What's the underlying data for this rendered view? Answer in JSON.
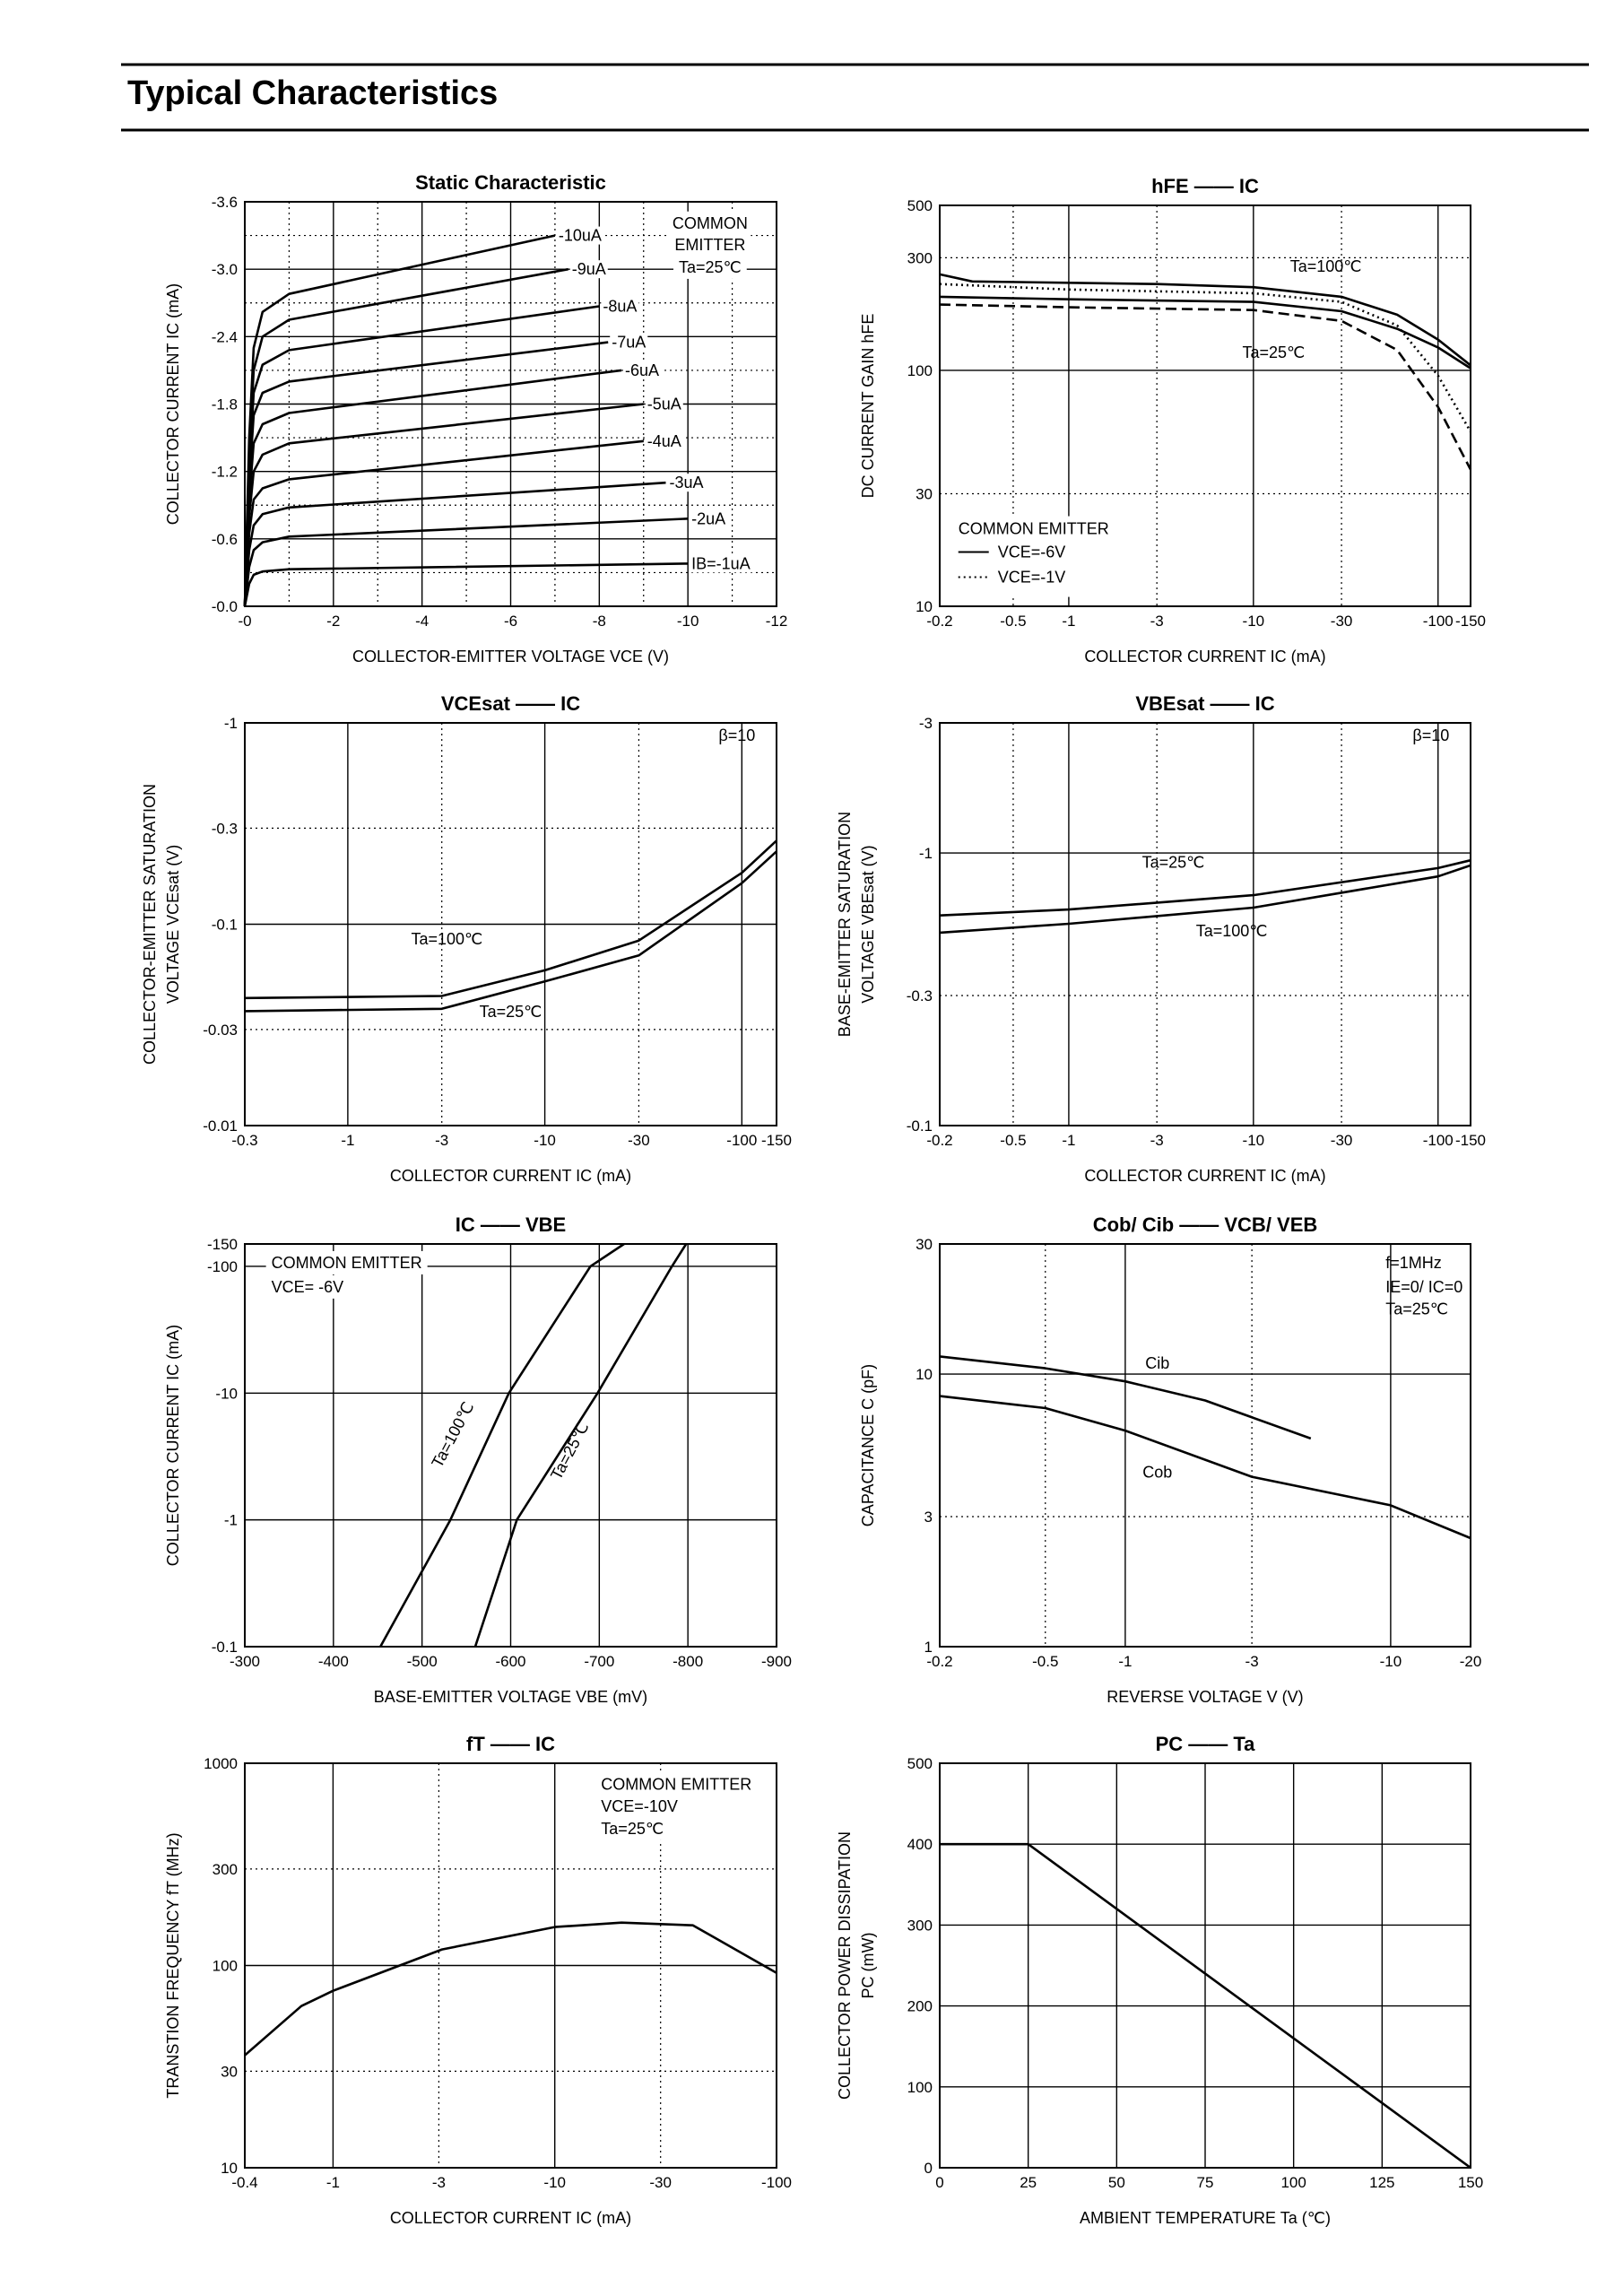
{
  "header": {
    "title": "Typical Characteristics"
  },
  "chart_data": [
    {
      "type": "line",
      "title": "Static Characteristic",
      "x_label": "COLLECTOR-EMITTER VOLTAGE   VCE   (V)",
      "y_label": [
        "COLLECTOR CURRENT   IC   (mA)"
      ],
      "xscale": "linear",
      "yscale": "linear",
      "xlim": [
        0,
        -12
      ],
      "ylim": [
        0,
        -3.6
      ],
      "xticks": [
        {
          "value": 0,
          "label": "-0"
        },
        -2,
        -4,
        -6,
        -8,
        -10,
        -12
      ],
      "yticks": [
        {
          "value": 0,
          "label": "-0.0"
        },
        -0.6,
        -1.2,
        -1.8,
        -2.4,
        {
          "value": -3,
          "label": "-3.0"
        },
        -3.6
      ],
      "minor_xticks": [
        -1,
        -3,
        -5,
        -7,
        -9,
        -11
      ],
      "minor_yticks": [
        -0.3,
        -0.9,
        -1.5,
        -2.1,
        -2.7,
        -3.3
      ],
      "grid": true,
      "annotations": [
        "COMMON",
        "EMITTER",
        "Ta=25℃"
      ],
      "series": [
        {
          "name": "IB=-1uA",
          "color": "#000000",
          "dash": "solid",
          "x": [
            0,
            -0.1,
            -0.2,
            -0.4,
            -1,
            -10
          ],
          "values": [
            0,
            -0.2,
            -0.28,
            -0.31,
            -0.33,
            -0.38
          ]
        },
        {
          "name": "-2uA",
          "color": "#000000",
          "dash": "solid",
          "x": [
            0,
            -0.1,
            -0.2,
            -0.4,
            -1,
            -10
          ],
          "values": [
            0,
            -0.35,
            -0.5,
            -0.57,
            -0.62,
            -0.78
          ]
        },
        {
          "name": "-3uA",
          "color": "#000000",
          "dash": "solid",
          "x": [
            0,
            -0.1,
            -0.2,
            -0.4,
            -1,
            -9.5
          ],
          "values": [
            0,
            -0.5,
            -0.72,
            -0.82,
            -0.88,
            -1.1
          ]
        },
        {
          "name": "-4uA",
          "color": "#000000",
          "dash": "solid",
          "x": [
            0,
            -0.1,
            -0.2,
            -0.4,
            -1,
            -9
          ],
          "values": [
            0,
            -0.65,
            -0.95,
            -1.05,
            -1.13,
            -1.47
          ]
        },
        {
          "name": "-5uA",
          "color": "#000000",
          "dash": "solid",
          "x": [
            0,
            -0.1,
            -0.2,
            -0.4,
            -1,
            -9
          ],
          "values": [
            0,
            -0.8,
            -1.2,
            -1.35,
            -1.45,
            -1.8
          ]
        },
        {
          "name": "-6uA",
          "color": "#000000",
          "dash": "solid",
          "x": [
            0,
            -0.1,
            -0.2,
            -0.4,
            -1,
            -8.5
          ],
          "values": [
            0,
            -0.95,
            -1.45,
            -1.62,
            -1.72,
            -2.1
          ]
        },
        {
          "name": "-7uA",
          "color": "#000000",
          "dash": "solid",
          "x": [
            0,
            -0.1,
            -0.2,
            -0.4,
            -1,
            -8.2
          ],
          "values": [
            0,
            -1.1,
            -1.7,
            -1.9,
            -2.0,
            -2.35
          ]
        },
        {
          "name": "-8uA",
          "color": "#000000",
          "dash": "solid",
          "x": [
            0,
            -0.1,
            -0.2,
            -0.4,
            -1,
            -8
          ],
          "values": [
            0,
            -1.2,
            -1.9,
            -2.15,
            -2.28,
            -2.67
          ]
        },
        {
          "name": "-9uA",
          "color": "#000000",
          "dash": "solid",
          "x": [
            0,
            -0.1,
            -0.2,
            -0.4,
            -1,
            -7.3
          ],
          "values": [
            0,
            -1.35,
            -2.1,
            -2.4,
            -2.55,
            -3.0
          ]
        },
        {
          "name": "-10uA",
          "color": "#000000",
          "dash": "solid",
          "x": [
            0,
            -0.1,
            -0.2,
            -0.4,
            -1,
            -7
          ],
          "values": [
            0,
            -1.5,
            -2.3,
            -2.62,
            -2.78,
            -3.3
          ]
        }
      ]
    },
    {
      "type": "line",
      "title": "hFE  ——  IC",
      "x_label": "COLLECTOR CURRENT   IC   (mA)",
      "y_label": [
        "DC CURRENT GAIN   hFE"
      ],
      "xscale": "log",
      "yscale": "log",
      "xlim": [
        -0.2,
        -150
      ],
      "ylim": [
        10,
        500
      ],
      "xticks": [
        -0.2,
        -0.5,
        -1,
        -3,
        -10,
        -30,
        -100,
        -150
      ],
      "yticks": [
        10,
        30,
        100,
        300,
        500
      ],
      "grid": true,
      "annotations": [
        "Ta=100℃",
        "Ta=25℃"
      ],
      "legend": {
        "title": "COMMON EMITTER",
        "entries": [
          {
            "label": "VCE=-6V",
            "dash": "solid"
          },
          {
            "label": "VCE=-1V",
            "dash": "dotted"
          }
        ]
      },
      "series": [
        {
          "color": "#000000",
          "dash": "solid",
          "x": [
            -0.2,
            -0.3,
            -1,
            -3,
            -10,
            -30,
            -60,
            -100,
            -150
          ],
          "values": [
            255,
            238,
            235,
            232,
            225,
            205,
            172,
            135,
            105
          ]
        },
        {
          "color": "#000000",
          "dash": "dotted",
          "x": [
            -0.2,
            -1,
            -10,
            -30,
            -60,
            -100,
            -150
          ],
          "values": [
            232,
            220,
            212,
            195,
            155,
            95,
            55
          ]
        },
        {
          "color": "#000000",
          "dash": "solid",
          "x": [
            -0.2,
            -1,
            -10,
            -30,
            -60,
            -100,
            -150
          ],
          "values": [
            205,
            200,
            195,
            178,
            150,
            125,
            102
          ]
        },
        {
          "color": "#000000",
          "dash": "dashed",
          "x": [
            -0.2,
            -1,
            -10,
            -30,
            -60,
            -100,
            -150
          ],
          "values": [
            190,
            185,
            180,
            162,
            122,
            70,
            38
          ]
        }
      ]
    },
    {
      "type": "line",
      "title": "VCEsat  ——  IC",
      "x_label": "COLLECTOR CURRENT   IC   (mA)",
      "y_label": [
        "COLLECTOR-EMITTER SATURATION",
        "VOLTAGE   VCEsat   (V)"
      ],
      "xscale": "log",
      "yscale": "log",
      "xlim": [
        -0.3,
        -150
      ],
      "ylim": [
        -0.01,
        -1
      ],
      "xticks": [
        -0.3,
        -1,
        -3,
        -10,
        -30,
        -100,
        -150
      ],
      "yticks": [
        -0.01,
        -0.03,
        -0.1,
        -0.3,
        -1
      ],
      "grid": true,
      "annotations": [
        "β=10"
      ],
      "series": [
        {
          "name": "Ta=100℃",
          "color": "#000000",
          "dash": "solid",
          "x": [
            -0.3,
            -3,
            -10,
            -30,
            -100,
            -150
          ],
          "values": [
            -0.043,
            -0.044,
            -0.059,
            -0.083,
            -0.18,
            -0.26
          ]
        },
        {
          "name": "Ta=25℃",
          "color": "#000000",
          "dash": "solid",
          "x": [
            -0.3,
            -3,
            -10,
            -30,
            -100,
            -150
          ],
          "values": [
            -0.037,
            -0.038,
            -0.052,
            -0.07,
            -0.16,
            -0.23
          ]
        }
      ]
    },
    {
      "type": "line",
      "title": "VBEsat  ——  IC",
      "x_label": "COLLECTOR CURRENT   IC   (mA)",
      "y_label": [
        "BASE-EMITTER SATURATION",
        "VOLTAGE   VBEsat   (V)"
      ],
      "xscale": "log",
      "yscale": "log",
      "xlim": [
        -0.2,
        -150
      ],
      "ylim": [
        -0.1,
        -3
      ],
      "xticks": [
        -0.2,
        -0.5,
        -1,
        -3,
        -10,
        -30,
        -100,
        -150
      ],
      "yticks": [
        -0.1,
        -0.3,
        -1,
        -3
      ],
      "grid": true,
      "annotations": [
        "β=10"
      ],
      "series": [
        {
          "name": "Ta=25℃",
          "color": "#000000",
          "dash": "solid",
          "x": [
            -0.2,
            -1,
            -10,
            -100,
            -150
          ],
          "values": [
            -0.59,
            -0.62,
            -0.7,
            -0.88,
            -0.94
          ]
        },
        {
          "name": "Ta=100℃",
          "color": "#000000",
          "dash": "solid",
          "x": [
            -0.2,
            -1,
            -10,
            -100,
            -150
          ],
          "values": [
            -0.51,
            -0.55,
            -0.63,
            -0.82,
            -0.9
          ]
        }
      ]
    },
    {
      "type": "line",
      "title": "IC  ——  VBE",
      "x_label": "BASE-EMITTER VOLTAGE  VBE  (mV)",
      "y_label": [
        "COLLECTOR CURRENT   IC   (mA)"
      ],
      "xscale": "linear",
      "yscale": "log",
      "xlim": [
        -300,
        -900
      ],
      "ylim": [
        -0.1,
        -150
      ],
      "xticks": [
        -300,
        -400,
        -500,
        -600,
        -700,
        -800,
        -900
      ],
      "yticks": [
        -0.1,
        -1,
        -10,
        -100,
        -150
      ],
      "grid": true,
      "annotations": [
        "COMMON EMITTER",
        "VCE= -6V"
      ],
      "series": [
        {
          "name": "Ta=100℃",
          "color": "#000000",
          "dash": "solid",
          "x": [
            -453,
            -532,
            -598,
            -690,
            -728
          ],
          "values": [
            -0.1,
            -1,
            -10,
            -100,
            -150
          ]
        },
        {
          "name": "Ta=25℃",
          "color": "#000000",
          "dash": "solid",
          "x": [
            -560,
            -607,
            -698,
            -782,
            -798
          ],
          "values": [
            -0.1,
            -1,
            -10,
            -100,
            -150
          ]
        }
      ]
    },
    {
      "type": "line",
      "title": "Cob/ Cib  ——  VCB/ VEB",
      "x_label": "REVERSE VOLTAGE   V   (V)",
      "y_label": [
        "CAPACITANCE   C   (pF)"
      ],
      "xscale": "log",
      "yscale": "log",
      "xlim": [
        -0.2,
        -20
      ],
      "ylim": [
        1,
        30
      ],
      "xticks": [
        -0.2,
        -0.5,
        -1,
        -3,
        -10,
        -20
      ],
      "yticks": [
        1,
        3,
        10,
        30
      ],
      "grid": true,
      "annotations": [
        "f=1MHz",
        "IE=0/ IC=0",
        "Ta=25℃"
      ],
      "series": [
        {
          "name": "Cib",
          "color": "#000000",
          "dash": "solid",
          "x": [
            -0.2,
            -0.5,
            -1,
            -2,
            -5
          ],
          "values": [
            11.6,
            10.5,
            9.4,
            8.0,
            5.8
          ]
        },
        {
          "name": "Cob",
          "color": "#000000",
          "dash": "solid",
          "x": [
            -0.2,
            -0.5,
            -1,
            -3,
            -10,
            -20
          ],
          "values": [
            8.3,
            7.5,
            6.2,
            4.2,
            3.3,
            2.5
          ]
        }
      ]
    },
    {
      "type": "line",
      "title": "fT  ——  IC",
      "x_label": "COLLECTOR CURRENT   IC   (mA)",
      "y_label": [
        "TRANSTION FREQUENCY   fT   (MHz)"
      ],
      "xscale": "log",
      "yscale": "log",
      "xlim": [
        -0.4,
        -100
      ],
      "ylim": [
        10,
        1000
      ],
      "xticks": [
        -0.4,
        -1,
        -3,
        -10,
        -30,
        -100
      ],
      "yticks": [
        10,
        30,
        100,
        300,
        1000
      ],
      "grid": true,
      "annotations": [
        "COMMON EMITTER",
        "VCE=-10V",
        "Ta=25℃"
      ],
      "series": [
        {
          "color": "#000000",
          "dash": "solid",
          "x": [
            -0.4,
            -0.72,
            -1,
            -3.1,
            -10,
            -20,
            -42,
            -100
          ],
          "values": [
            36,
            63,
            75,
            120,
            155,
            163,
            158,
            92
          ]
        }
      ]
    },
    {
      "type": "line",
      "title": "PC  ——  Ta",
      "x_label": "AMBIENT TEMPERATURE   Ta   (℃)",
      "y_label": [
        "COLLECTOR POWER DISSIPATION",
        "PC  (mW)"
      ],
      "xscale": "linear",
      "yscale": "linear",
      "xlim": [
        0,
        150
      ],
      "ylim": [
        0,
        500
      ],
      "xticks": [
        0,
        25,
        50,
        75,
        100,
        125,
        150
      ],
      "yticks": [
        0,
        100,
        200,
        300,
        400,
        500
      ],
      "grid": true,
      "series": [
        {
          "color": "#000000",
          "dash": "solid",
          "x": [
            0,
            25,
            150
          ],
          "values": [
            400,
            400,
            0
          ]
        }
      ]
    }
  ]
}
